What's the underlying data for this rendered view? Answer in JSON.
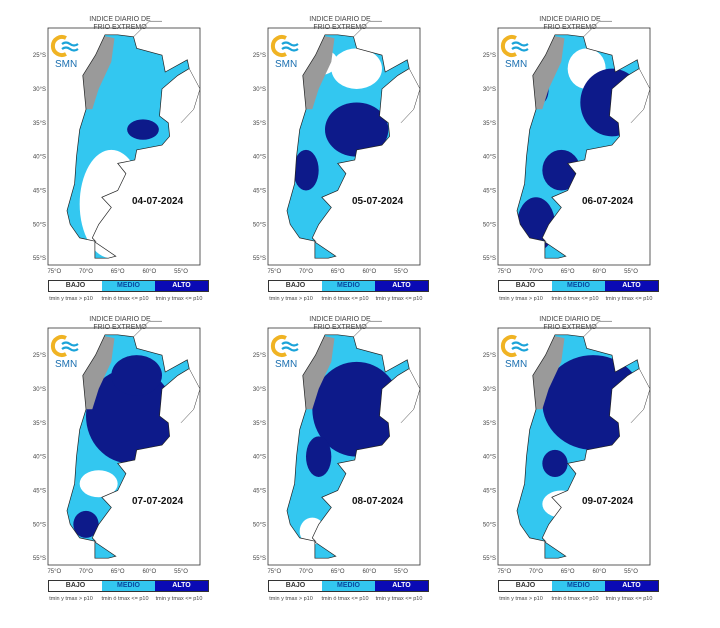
{
  "title_line1": "INDICE DIARIO DE",
  "title_line2": "FRIO EXTREMO",
  "logo_text": "SMN",
  "lat_labels": [
    "25°S",
    "30°S",
    "35°S",
    "40°S",
    "45°S",
    "50°S",
    "55°S"
  ],
  "lon_labels": [
    "75°O",
    "70°O",
    "65°O",
    "60°O",
    "55°O"
  ],
  "legend": {
    "categories": [
      {
        "label": "BAJO",
        "desc": "tmin y tmax > p10",
        "color": "#ffffff"
      },
      {
        "label": "MEDIO",
        "desc": "tmin ó tmax <= p10",
        "color": "#33c7f0"
      },
      {
        "label": "ALTO",
        "desc": "tmin y tmax <= p10",
        "color": "#0a0ab4"
      }
    ]
  },
  "colors": {
    "bajo": "#ffffff",
    "medio": "#33c7f0",
    "alto": "#0d1a8a",
    "andes": "#9a9a9a"
  },
  "panels": [
    {
      "date": "04-07-2024"
    },
    {
      "date": "05-07-2024"
    },
    {
      "date": "06-07-2024"
    },
    {
      "date": "07-07-2024"
    },
    {
      "date": "08-07-2024"
    },
    {
      "date": "09-07-2024"
    }
  ]
}
